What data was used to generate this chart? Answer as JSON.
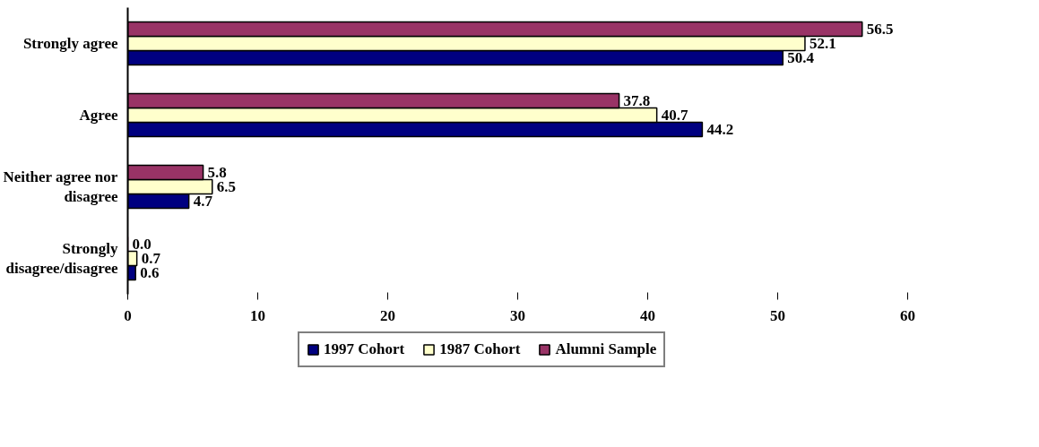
{
  "chart_data": {
    "type": "bar",
    "orientation": "horizontal",
    "categories": [
      "Strongly agree",
      "Agree",
      "Neither agree nor disagree",
      "Strongly disagree/disagree"
    ],
    "series": [
      {
        "name": "1997 Cohort",
        "color": "#000080",
        "values": [
          50.4,
          44.2,
          4.7,
          0.6
        ],
        "value_labels": [
          "50.4",
          "44.2",
          "4.7",
          "0.6"
        ]
      },
      {
        "name": "1987 Cohort",
        "color": "#ffffcc",
        "values": [
          52.1,
          40.7,
          6.5,
          0.7
        ],
        "value_labels": [
          "52.1",
          "40.7",
          "6.5",
          "0.7"
        ]
      },
      {
        "name": "Alumni Sample",
        "color": "#993366",
        "values": [
          56.5,
          37.8,
          5.8,
          0.0
        ],
        "value_labels": [
          "56.5",
          "37.8",
          "5.8",
          "0.0"
        ]
      }
    ],
    "xlim": [
      0,
      60
    ],
    "xticks": [
      0,
      10,
      20,
      30,
      40,
      50,
      60
    ],
    "grid": false,
    "legend": "bottom",
    "data_labels": true
  }
}
